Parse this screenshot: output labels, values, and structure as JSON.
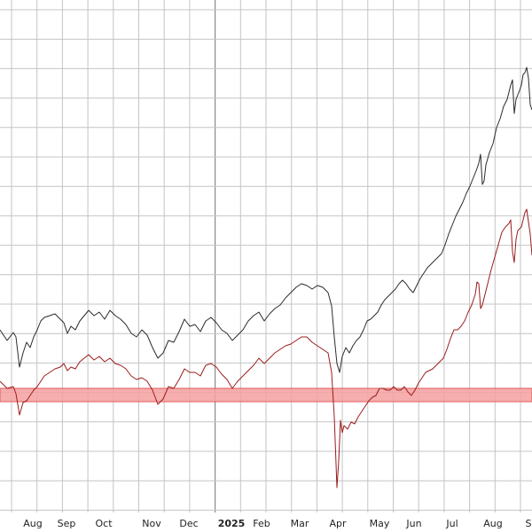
{
  "chart_data": {
    "type": "line",
    "title": "",
    "xlabel": "",
    "ylabel": "",
    "x_ticks": [
      "Aug",
      "Sep",
      "Oct",
      "Nov",
      "Dec",
      "2025",
      "Feb",
      "Mar",
      "Apr",
      "May",
      "Jun",
      "Jul",
      "Aug",
      "S"
    ],
    "x_tick_bold": [
      false,
      false,
      false,
      false,
      false,
      true,
      false,
      false,
      false,
      false,
      false,
      false,
      false,
      false
    ],
    "grid": true,
    "band": {
      "color": "#f4a0a0",
      "border": "#e05a5a"
    },
    "series": [
      {
        "color": "#2b2b2b",
        "points": [
          [
            0,
            372
          ],
          [
            8,
            384
          ],
          [
            15,
            375
          ],
          [
            18,
            380
          ],
          [
            22,
            414
          ],
          [
            26,
            398
          ],
          [
            30,
            386
          ],
          [
            34,
            392
          ],
          [
            38,
            380
          ],
          [
            42,
            372
          ],
          [
            46,
            362
          ],
          [
            50,
            358
          ],
          [
            56,
            356
          ],
          [
            62,
            354
          ],
          [
            68,
            360
          ],
          [
            72,
            364
          ],
          [
            76,
            376
          ],
          [
            80,
            368
          ],
          [
            85,
            372
          ],
          [
            90,
            362
          ],
          [
            95,
            356
          ],
          [
            100,
            350
          ],
          [
            106,
            356
          ],
          [
            112,
            352
          ],
          [
            118,
            360
          ],
          [
            124,
            350
          ],
          [
            130,
            356
          ],
          [
            136,
            360
          ],
          [
            142,
            366
          ],
          [
            148,
            376
          ],
          [
            154,
            380
          ],
          [
            160,
            372
          ],
          [
            166,
            378
          ],
          [
            172,
            392
          ],
          [
            178,
            404
          ],
          [
            184,
            398
          ],
          [
            190,
            384
          ],
          [
            196,
            386
          ],
          [
            202,
            374
          ],
          [
            208,
            360
          ],
          [
            214,
            368
          ],
          [
            220,
            366
          ],
          [
            226,
            374
          ],
          [
            232,
            362
          ],
          [
            238,
            358
          ],
          [
            244,
            364
          ],
          [
            250,
            372
          ],
          [
            256,
            376
          ],
          [
            262,
            384
          ],
          [
            268,
            378
          ],
          [
            274,
            372
          ],
          [
            280,
            362
          ],
          [
            286,
            356
          ],
          [
            292,
            352
          ],
          [
            298,
            362
          ],
          [
            304,
            354
          ],
          [
            310,
            348
          ],
          [
            316,
            344
          ],
          [
            322,
            336
          ],
          [
            328,
            330
          ],
          [
            334,
            324
          ],
          [
            340,
            320
          ],
          [
            346,
            322
          ],
          [
            352,
            326
          ],
          [
            358,
            322
          ],
          [
            364,
            324
          ],
          [
            370,
            330
          ],
          [
            374,
            345
          ],
          [
            377,
            380
          ],
          [
            380,
            410
          ],
          [
            383,
            420
          ],
          [
            386,
            402
          ],
          [
            390,
            392
          ],
          [
            394,
            398
          ],
          [
            398,
            390
          ],
          [
            402,
            384
          ],
          [
            406,
            380
          ],
          [
            410,
            372
          ],
          [
            414,
            362
          ],
          [
            418,
            360
          ],
          [
            422,
            356
          ],
          [
            426,
            352
          ],
          [
            430,
            344
          ],
          [
            434,
            338
          ],
          [
            438,
            334
          ],
          [
            442,
            330
          ],
          [
            446,
            326
          ],
          [
            450,
            320
          ],
          [
            454,
            316
          ],
          [
            458,
            320
          ],
          [
            462,
            326
          ],
          [
            466,
            330
          ],
          [
            470,
            322
          ],
          [
            474,
            314
          ],
          [
            478,
            308
          ],
          [
            482,
            302
          ],
          [
            486,
            298
          ],
          [
            490,
            294
          ],
          [
            494,
            290
          ],
          [
            498,
            286
          ],
          [
            502,
            276
          ],
          [
            506,
            264
          ],
          [
            510,
            254
          ],
          [
            514,
            244
          ],
          [
            518,
            236
          ],
          [
            522,
            228
          ],
          [
            526,
            218
          ],
          [
            530,
            210
          ],
          [
            534,
            200
          ],
          [
            538,
            190
          ],
          [
            540,
            184
          ],
          [
            542,
            174
          ],
          [
            544,
            208
          ],
          [
            546,
            204
          ],
          [
            548,
            186
          ],
          [
            552,
            172
          ],
          [
            556,
            162
          ],
          [
            560,
            144
          ],
          [
            564,
            134
          ],
          [
            568,
            120
          ],
          [
            572,
            112
          ],
          [
            576,
            96
          ],
          [
            578,
            90
          ],
          [
            580,
            128
          ],
          [
            582,
            112
          ],
          [
            586,
            102
          ],
          [
            588,
            96
          ],
          [
            590,
            84
          ],
          [
            592,
            82
          ],
          [
            594,
            76
          ],
          [
            596,
            88
          ],
          [
            598,
            118
          ],
          [
            600,
            124
          ]
        ]
      },
      {
        "color": "#9b1c1c",
        "points": [
          [
            0,
            430
          ],
          [
            8,
            438
          ],
          [
            15,
            436
          ],
          [
            18,
            444
          ],
          [
            22,
            468
          ],
          [
            26,
            454
          ],
          [
            30,
            452
          ],
          [
            34,
            446
          ],
          [
            38,
            440
          ],
          [
            42,
            436
          ],
          [
            46,
            430
          ],
          [
            50,
            424
          ],
          [
            56,
            420
          ],
          [
            62,
            416
          ],
          [
            68,
            414
          ],
          [
            72,
            410
          ],
          [
            76,
            418
          ],
          [
            80,
            414
          ],
          [
            85,
            416
          ],
          [
            90,
            408
          ],
          [
            95,
            404
          ],
          [
            100,
            400
          ],
          [
            106,
            406
          ],
          [
            112,
            402
          ],
          [
            118,
            408
          ],
          [
            124,
            404
          ],
          [
            130,
            410
          ],
          [
            136,
            412
          ],
          [
            142,
            416
          ],
          [
            148,
            424
          ],
          [
            154,
            428
          ],
          [
            160,
            426
          ],
          [
            166,
            430
          ],
          [
            172,
            440
          ],
          [
            178,
            456
          ],
          [
            184,
            450
          ],
          [
            190,
            436
          ],
          [
            196,
            438
          ],
          [
            202,
            428
          ],
          [
            208,
            416
          ],
          [
            214,
            420
          ],
          [
            220,
            420
          ],
          [
            226,
            424
          ],
          [
            232,
            412
          ],
          [
            238,
            410
          ],
          [
            244,
            414
          ],
          [
            250,
            422
          ],
          [
            256,
            428
          ],
          [
            262,
            438
          ],
          [
            268,
            430
          ],
          [
            274,
            424
          ],
          [
            280,
            418
          ],
          [
            286,
            412
          ],
          [
            292,
            404
          ],
          [
            298,
            410
          ],
          [
            304,
            404
          ],
          [
            310,
            398
          ],
          [
            316,
            394
          ],
          [
            322,
            390
          ],
          [
            328,
            388
          ],
          [
            334,
            384
          ],
          [
            340,
            380
          ],
          [
            346,
            380
          ],
          [
            352,
            386
          ],
          [
            358,
            390
          ],
          [
            364,
            394
          ],
          [
            370,
            398
          ],
          [
            374,
            420
          ],
          [
            377,
            470
          ],
          [
            380,
            550
          ],
          [
            382,
            520
          ],
          [
            384,
            474
          ],
          [
            386,
            488
          ],
          [
            388,
            480
          ],
          [
            392,
            484
          ],
          [
            396,
            476
          ],
          [
            400,
            478
          ],
          [
            404,
            470
          ],
          [
            408,
            464
          ],
          [
            412,
            458
          ],
          [
            416,
            452
          ],
          [
            420,
            448
          ],
          [
            424,
            446
          ],
          [
            428,
            438
          ],
          [
            432,
            438
          ],
          [
            436,
            440
          ],
          [
            440,
            440
          ],
          [
            444,
            436
          ],
          [
            448,
            440
          ],
          [
            452,
            440
          ],
          [
            456,
            436
          ],
          [
            460,
            442
          ],
          [
            464,
            446
          ],
          [
            468,
            440
          ],
          [
            472,
            432
          ],
          [
            476,
            426
          ],
          [
            480,
            420
          ],
          [
            484,
            418
          ],
          [
            488,
            416
          ],
          [
            492,
            412
          ],
          [
            496,
            408
          ],
          [
            500,
            404
          ],
          [
            504,
            394
          ],
          [
            508,
            382
          ],
          [
            512,
            372
          ],
          [
            516,
            372
          ],
          [
            520,
            368
          ],
          [
            524,
            362
          ],
          [
            528,
            352
          ],
          [
            532,
            344
          ],
          [
            536,
            332
          ],
          [
            538,
            318
          ],
          [
            540,
            320
          ],
          [
            542,
            348
          ],
          [
            544,
            344
          ],
          [
            546,
            336
          ],
          [
            550,
            320
          ],
          [
            554,
            304
          ],
          [
            558,
            290
          ],
          [
            562,
            276
          ],
          [
            566,
            262
          ],
          [
            570,
            256
          ],
          [
            574,
            252
          ],
          [
            576,
            248
          ],
          [
            578,
            284
          ],
          [
            580,
            296
          ],
          [
            582,
            270
          ],
          [
            584,
            260
          ],
          [
            586,
            258
          ],
          [
            588,
            256
          ],
          [
            590,
            248
          ],
          [
            592,
            240
          ],
          [
            594,
            236
          ],
          [
            596,
            250
          ],
          [
            598,
            264
          ],
          [
            600,
            288
          ]
        ]
      }
    ]
  }
}
